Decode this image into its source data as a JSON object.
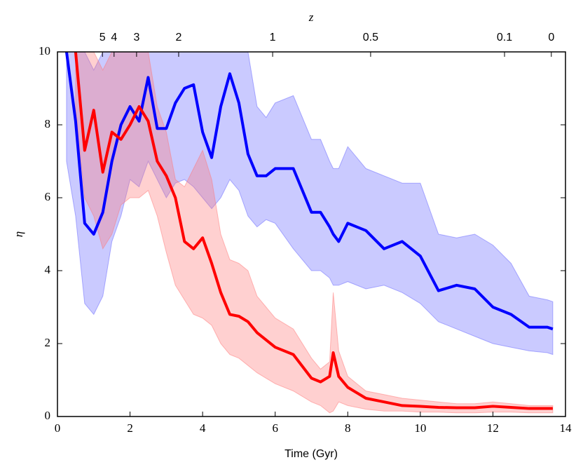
{
  "chart_data": {
    "type": "line",
    "xlabel": "Time (Gyr)",
    "ylabel": "η",
    "x2label": "z",
    "xlim": [
      0,
      14
    ],
    "ylim": [
      0,
      10
    ],
    "xticks": [
      0,
      2,
      4,
      6,
      8,
      10,
      12,
      14
    ],
    "yticks": [
      0,
      2,
      4,
      6,
      8,
      10
    ],
    "x2ticks": [
      {
        "value": 1.24,
        "label": "5"
      },
      {
        "value": 1.56,
        "label": "4"
      },
      {
        "value": 2.18,
        "label": "3"
      },
      {
        "value": 3.34,
        "label": "2"
      },
      {
        "value": 5.93,
        "label": "1"
      },
      {
        "value": 8.63,
        "label": "0.5"
      },
      {
        "value": 12.32,
        "label": "0.1"
      },
      {
        "value": 13.61,
        "label": "0"
      }
    ],
    "grid": false,
    "x": [
      0.25,
      0.5,
      0.75,
      1.0,
      1.25,
      1.5,
      1.75,
      2.0,
      2.25,
      2.5,
      2.75,
      3.0,
      3.25,
      3.5,
      3.75,
      4.0,
      4.25,
      4.5,
      4.75,
      5.0,
      5.25,
      5.5,
      5.75,
      6.0,
      6.5,
      7.0,
      7.25,
      7.5,
      7.6,
      7.75,
      8.0,
      8.5,
      9.0,
      9.5,
      10.0,
      10.5,
      11.0,
      11.5,
      12.0,
      12.5,
      13.0,
      13.5,
      13.65
    ],
    "series": [
      {
        "color": "#0000ff",
        "band_color": "#6666ff",
        "values": [
          10,
          8.1,
          5.3,
          5.0,
          5.6,
          7.0,
          8.0,
          8.5,
          8.1,
          9.3,
          7.9,
          7.9,
          8.6,
          9.0,
          9.1,
          7.8,
          7.1,
          8.5,
          9.4,
          8.6,
          7.2,
          6.6,
          6.6,
          6.8,
          6.8,
          5.6,
          5.6,
          5.2,
          5.0,
          4.8,
          5.3,
          5.1,
          4.6,
          4.8,
          4.4,
          3.45,
          3.6,
          3.5,
          3.0,
          2.8,
          2.45,
          2.45,
          2.4
        ],
        "upper": [
          10,
          10,
          10,
          9.5,
          10,
          10,
          10,
          10,
          10,
          10,
          10,
          10,
          10,
          10,
          10,
          10,
          10,
          10,
          10,
          10,
          10,
          8.5,
          8.2,
          8.6,
          8.8,
          7.6,
          7.6,
          7.0,
          6.8,
          6.8,
          7.4,
          6.8,
          6.6,
          6.4,
          6.4,
          5.0,
          4.9,
          5.0,
          4.7,
          4.2,
          3.3,
          3.2,
          3.15
        ],
        "lower": [
          7.0,
          5.5,
          3.1,
          2.8,
          3.3,
          4.8,
          5.5,
          6.5,
          6.3,
          7.0,
          6.5,
          6.0,
          6.4,
          6.5,
          6.3,
          6.0,
          5.7,
          6.0,
          6.5,
          6.2,
          5.5,
          5.2,
          5.4,
          5.3,
          4.6,
          4.0,
          4.0,
          3.8,
          3.6,
          3.6,
          3.7,
          3.5,
          3.6,
          3.4,
          3.1,
          2.6,
          2.4,
          2.2,
          2.0,
          1.9,
          1.8,
          1.75,
          1.7
        ]
      },
      {
        "color": "#ff0000",
        "band_color": "#ff7777",
        "values": [
          null,
          10,
          7.3,
          8.4,
          6.7,
          7.8,
          7.6,
          8.0,
          8.5,
          8.1,
          7.0,
          6.6,
          6.0,
          4.8,
          4.6,
          4.9,
          4.2,
          3.4,
          2.8,
          2.75,
          2.6,
          2.3,
          2.1,
          1.9,
          1.7,
          1.05,
          0.95,
          1.1,
          1.75,
          1.1,
          0.8,
          0.5,
          0.4,
          0.3,
          0.28,
          0.25,
          0.24,
          0.24,
          0.28,
          0.25,
          0.22,
          0.22,
          0.22
        ],
        "upper": [
          null,
          10,
          10,
          10,
          9.5,
          10,
          10,
          10,
          10,
          10,
          8.5,
          7.8,
          6.5,
          6.3,
          6.8,
          7.3,
          6.5,
          5.0,
          4.3,
          4.2,
          4.0,
          3.3,
          3.0,
          2.7,
          2.4,
          1.6,
          1.3,
          1.5,
          3.4,
          1.8,
          1.1,
          0.7,
          0.6,
          0.5,
          0.45,
          0.4,
          0.35,
          0.35,
          0.4,
          0.35,
          0.3,
          0.3,
          0.3
        ],
        "lower": [
          null,
          8.5,
          6.0,
          5.5,
          4.6,
          5.0,
          5.8,
          6.0,
          6.0,
          6.2,
          5.5,
          4.5,
          3.6,
          3.2,
          2.8,
          2.7,
          2.5,
          2.0,
          1.7,
          1.6,
          1.4,
          1.2,
          1.05,
          0.9,
          0.7,
          0.4,
          0.3,
          0.1,
          0.15,
          0.4,
          0.3,
          0.2,
          0.15,
          0.15,
          0.12,
          0.12,
          0.1,
          0.1,
          0.12,
          0.12,
          0.1,
          0.1,
          0.1
        ]
      }
    ]
  }
}
